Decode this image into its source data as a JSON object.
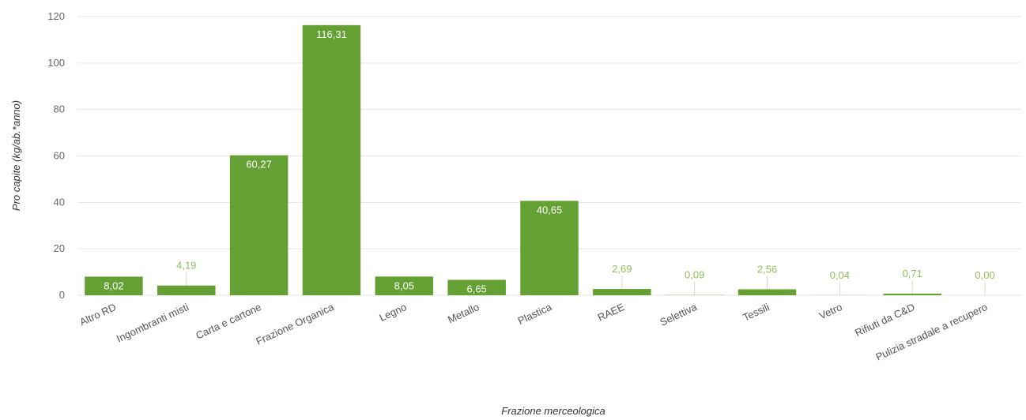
{
  "chart_data": {
    "type": "bar",
    "categories": [
      "Altro RD",
      "Ingombranti misti",
      "Carta e cartone",
      "Frazione Organica",
      "Legno",
      "Metallo",
      "Plastica",
      "RAEE",
      "Selettiva",
      "Tessili",
      "Vetro",
      "Rifiuti da C&D",
      "Pulizia stradale a recupero"
    ],
    "values": [
      8.02,
      4.19,
      60.27,
      116.31,
      8.05,
      6.65,
      40.65,
      2.69,
      0.09,
      2.56,
      0.04,
      0.71,
      0.0
    ],
    "data_labels": [
      "8,02",
      "4,19",
      "60,27",
      "116,31",
      "8,05",
      "6,65",
      "40,65",
      "2,69",
      "0,09",
      "2,56",
      "0,04",
      "0,71",
      "0,00"
    ],
    "xlabel": "Frazione merceologica",
    "ylabel": "Pro capite (kg/ab.*anno)",
    "ylim": [
      0,
      120
    ],
    "yticks": [
      "0",
      "20",
      "40",
      "60",
      "80",
      "100",
      "120"
    ],
    "grid": true,
    "colors": {
      "bar": "#64a033",
      "label_inside": "#ffffff",
      "label_outside": "#8fbf5a"
    }
  }
}
